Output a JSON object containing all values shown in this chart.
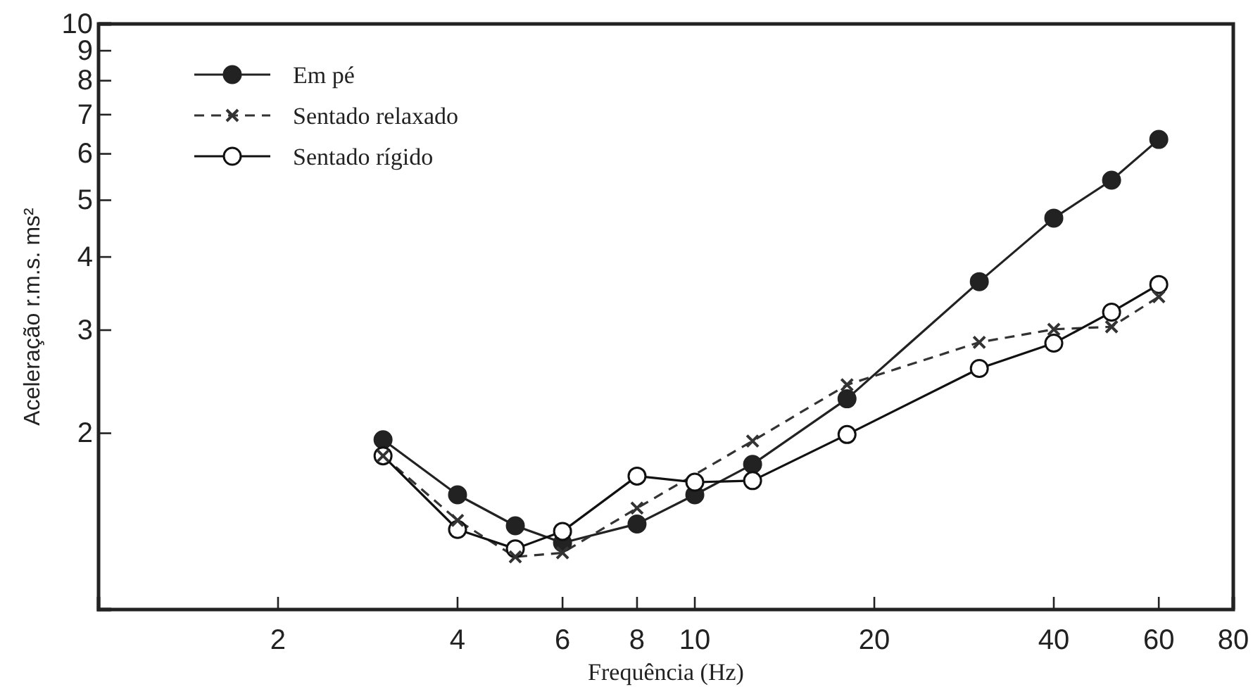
{
  "chart_data": {
    "type": "line",
    "xlabel": "Frequência (Hz)",
    "ylabel": "Aceleração r.m.s.  ms²",
    "log": "xy",
    "grid": false,
    "legend": "top left",
    "xlim": [
      1,
      80
    ],
    "xticks": [
      2,
      4,
      6,
      8,
      10,
      20,
      40,
      60,
      80
    ],
    "ylim": [
      1,
      10
    ],
    "yticks": [
      {
        "value": 1,
        "label": null
      },
      2,
      3,
      4,
      5,
      6,
      7,
      8,
      9,
      10
    ],
    "series": [
      {
        "name": "Em pé",
        "color": "#222222",
        "marker": "circle",
        "line_style": "solid",
        "x": [
          3,
          4,
          5,
          6,
          8,
          10,
          12.5,
          18,
          30,
          40,
          50,
          60
        ],
        "values": [
          1.95,
          1.57,
          1.39,
          1.3,
          1.4,
          1.57,
          1.77,
          2.29,
          3.63,
          4.66,
          5.41,
          6.35
        ]
      },
      {
        "name": "Sentado relaxado",
        "color": "#333333",
        "marker": "cross",
        "line_style": "dashed",
        "x": [
          3,
          4,
          5,
          6,
          8,
          10,
          12.5,
          18,
          30,
          40,
          50,
          60
        ],
        "values": [
          1.83,
          1.42,
          1.23,
          1.25,
          1.49,
          null,
          1.94,
          2.42,
          2.86,
          3.01,
          3.04,
          3.42
        ]
      },
      {
        "name": "Sentado rígido",
        "color": "#111111",
        "marker": "circle",
        "line_style": "solid",
        "x": [
          3,
          4,
          5,
          6,
          8,
          10,
          12.5,
          18,
          30,
          40,
          50,
          60
        ],
        "values": [
          1.83,
          1.37,
          1.27,
          1.36,
          1.69,
          1.65,
          1.66,
          1.99,
          2.58,
          2.85,
          3.22,
          3.59
        ]
      }
    ]
  }
}
